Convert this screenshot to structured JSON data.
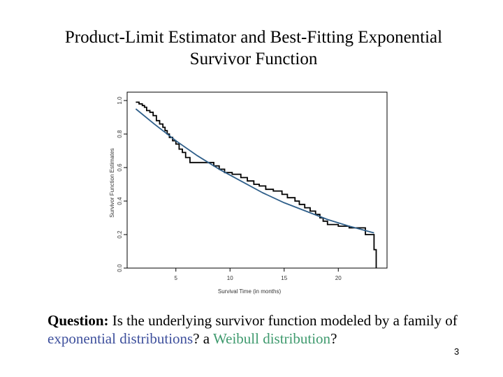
{
  "slide": {
    "title_line1": "Product-Limit Estimator and Best-Fitting Exponential",
    "title_line2": "Survivor Function",
    "question": {
      "lead": "Question:",
      "text1": " Is the underlying survivor function modeled by a family of ",
      "highlight1": "exponential distributions",
      "text2": "? a ",
      "highlight2": "Weibull distribution",
      "text3": "?"
    },
    "page_number": "3"
  },
  "colors": {
    "step_curve": "#000000",
    "fit_curve": "#2f5f8a",
    "highlight1": "#3d4f9c",
    "highlight2": "#3f9a6e"
  },
  "chart_data": {
    "type": "line",
    "title": "",
    "xlabel": "Survival Time (in months)",
    "ylabel": "Survivor Function Estimates",
    "xlim": [
      0.5,
      24.5
    ],
    "ylim": [
      0.0,
      1.05
    ],
    "xticks": [
      5,
      10,
      15,
      20
    ],
    "yticks": [
      0.0,
      0.2,
      0.4,
      0.6,
      0.8,
      1.0
    ],
    "xtick_labels": [
      "5",
      "10",
      "15",
      "20"
    ],
    "ytick_labels": [
      "0.0",
      "0.2",
      "0.4",
      "0.6",
      "0.8",
      "1.0"
    ],
    "grid": false,
    "series": [
      {
        "name": "Product-Limit Estimate",
        "kind": "step",
        "x": [
          1.3,
          1.6,
          1.9,
          2.1,
          2.3,
          2.6,
          2.9,
          3.2,
          3.5,
          3.8,
          4.0,
          4.2,
          4.4,
          4.7,
          5.0,
          5.3,
          5.6,
          5.9,
          6.3,
          7.0,
          8.5,
          9.0,
          9.5,
          10.2,
          11.0,
          11.6,
          12.2,
          12.7,
          13.3,
          14.0,
          14.8,
          15.3,
          16.0,
          16.4,
          16.9,
          17.4,
          17.9,
          18.3,
          18.6,
          19.0,
          20.0,
          21.0,
          22.5,
          23.3,
          23.5
        ],
        "y": [
          0.99,
          0.98,
          0.97,
          0.96,
          0.94,
          0.93,
          0.91,
          0.88,
          0.86,
          0.84,
          0.82,
          0.8,
          0.78,
          0.76,
          0.74,
          0.71,
          0.69,
          0.66,
          0.63,
          0.63,
          0.61,
          0.59,
          0.57,
          0.56,
          0.54,
          0.52,
          0.5,
          0.49,
          0.47,
          0.46,
          0.44,
          0.42,
          0.4,
          0.38,
          0.36,
          0.34,
          0.32,
          0.3,
          0.28,
          0.26,
          0.25,
          0.24,
          0.2,
          0.11,
          0.0
        ]
      },
      {
        "name": "Best-Fitting Exponential",
        "kind": "smooth",
        "x": [
          1.3,
          3.0,
          5.0,
          7.0,
          9.0,
          11.0,
          13.0,
          15.0,
          17.0,
          19.0,
          21.0,
          23.3
        ],
        "y": [
          0.95,
          0.86,
          0.76,
          0.67,
          0.59,
          0.52,
          0.45,
          0.39,
          0.34,
          0.29,
          0.25,
          0.21
        ]
      }
    ]
  }
}
